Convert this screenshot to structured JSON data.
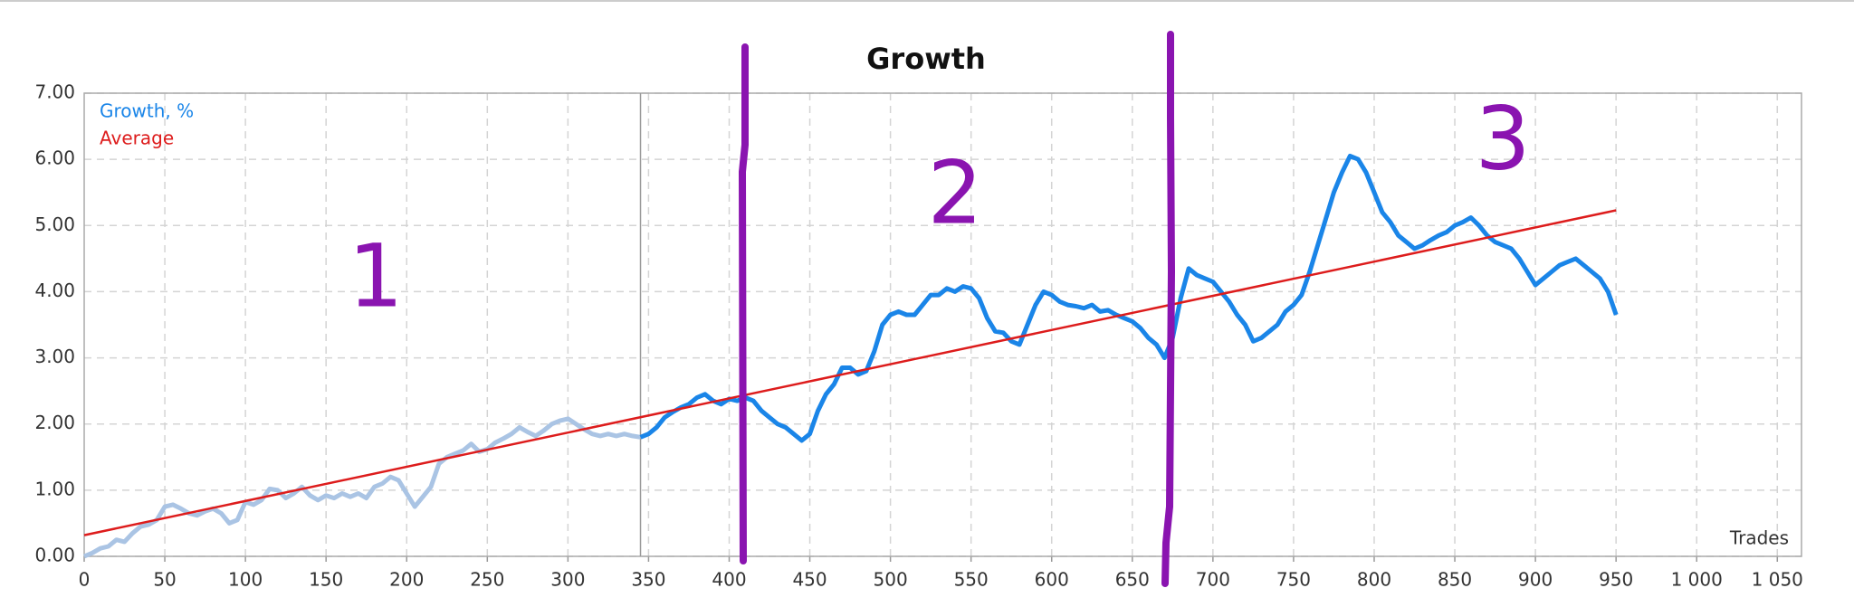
{
  "chart_data": {
    "type": "line",
    "title": "Growth",
    "x_label": "Trades",
    "xlim": [
      0,
      1065
    ],
    "xticks": [
      0,
      50,
      100,
      150,
      200,
      250,
      300,
      350,
      400,
      450,
      500,
      550,
      600,
      650,
      700,
      750,
      800,
      850,
      900,
      950,
      {
        "value": 1000,
        "label": "1 000"
      },
      {
        "value": 1050,
        "label": "1 050"
      }
    ],
    "ylim": [
      0,
      7
    ],
    "yticks": [
      {
        "value": 0,
        "label": "0.00"
      },
      {
        "value": 1,
        "label": "1.00"
      },
      {
        "value": 2,
        "label": "2.00"
      },
      {
        "value": 3,
        "label": "3.00"
      },
      {
        "value": 4,
        "label": "4.00"
      },
      {
        "value": 5,
        "label": "5.00"
      },
      {
        "value": 6,
        "label": "6.00"
      },
      {
        "value": 7,
        "label": "7.00"
      }
    ],
    "grid": true,
    "legend": "top-left",
    "series": [
      {
        "name": "Growth, %",
        "color": "#1a85e8",
        "x": [
          345,
          350,
          355,
          360,
          365,
          370,
          375,
          380,
          385,
          390,
          395,
          400,
          405,
          410,
          415,
          420,
          425,
          430,
          435,
          440,
          445,
          450,
          455,
          460,
          465,
          470,
          475,
          480,
          485,
          490,
          495,
          500,
          505,
          510,
          515,
          520,
          525,
          530,
          535,
          540,
          545,
          550,
          555,
          560,
          565,
          570,
          575,
          580,
          585,
          590,
          595,
          600,
          605,
          610,
          615,
          620,
          625,
          630,
          635,
          640,
          645,
          650,
          655,
          660,
          665,
          670,
          675,
          680,
          685,
          690,
          695,
          700,
          705,
          710,
          715,
          720,
          725,
          730,
          735,
          740,
          745,
          750,
          755,
          760,
          765,
          770,
          775,
          780,
          785,
          790,
          795,
          800,
          805,
          810,
          815,
          820,
          825,
          830,
          835,
          840,
          845,
          850,
          855,
          860,
          865,
          870,
          875,
          880,
          885,
          890,
          895,
          900,
          905,
          910,
          915,
          920,
          925,
          930,
          935,
          940,
          945,
          950
        ],
        "values": [
          1.8,
          1.85,
          1.95,
          2.1,
          2.18,
          2.25,
          2.3,
          2.4,
          2.45,
          2.35,
          2.3,
          2.38,
          2.35,
          2.4,
          2.35,
          2.2,
          2.1,
          2.0,
          1.95,
          1.85,
          1.75,
          1.85,
          2.2,
          2.45,
          2.6,
          2.85,
          2.85,
          2.75,
          2.8,
          3.1,
          3.5,
          3.65,
          3.7,
          3.65,
          3.65,
          3.8,
          3.95,
          3.95,
          4.05,
          4.0,
          4.08,
          4.05,
          3.9,
          3.6,
          3.4,
          3.38,
          3.25,
          3.2,
          3.5,
          3.8,
          4.0,
          3.95,
          3.85,
          3.8,
          3.78,
          3.75,
          3.8,
          3.7,
          3.72,
          3.65,
          3.6,
          3.55,
          3.45,
          3.3,
          3.2,
          3.0,
          3.3,
          3.9,
          4.35,
          4.25,
          4.2,
          4.15,
          4.0,
          3.85,
          3.65,
          3.5,
          3.25,
          3.3,
          3.4,
          3.5,
          3.7,
          3.8,
          3.95,
          4.3,
          4.7,
          5.1,
          5.5,
          5.8,
          6.05,
          6.0,
          5.8,
          5.5,
          5.2,
          5.05,
          4.85,
          4.75,
          4.65,
          4.7,
          4.78,
          4.85,
          4.9,
          5.0,
          5.05,
          5.12,
          5.0,
          4.85,
          4.75,
          4.7,
          4.65,
          4.5,
          4.3,
          4.1,
          4.2,
          4.3,
          4.4,
          4.45,
          4.5,
          4.4,
          4.3,
          4.2,
          4.0,
          3.65
        ]
      },
      {
        "name": "Average",
        "color": "#dd1c1c",
        "x": [
          0,
          950
        ],
        "values": [
          0.32,
          5.23
        ]
      },
      {
        "color": "#aac4e4",
        "x": [
          0,
          5,
          10,
          15,
          20,
          25,
          30,
          35,
          40,
          45,
          50,
          55,
          60,
          65,
          70,
          75,
          80,
          85,
          90,
          95,
          100,
          105,
          110,
          115,
          120,
          125,
          130,
          135,
          140,
          145,
          150,
          155,
          160,
          165,
          170,
          175,
          180,
          185,
          190,
          195,
          200,
          205,
          210,
          215,
          220,
          225,
          230,
          235,
          240,
          245,
          250,
          255,
          260,
          265,
          270,
          275,
          280,
          285,
          290,
          295,
          300,
          305,
          310,
          315,
          320,
          325,
          330,
          335,
          340,
          345
        ],
        "values": [
          0,
          0.05,
          0.12,
          0.15,
          0.25,
          0.22,
          0.35,
          0.45,
          0.48,
          0.55,
          0.75,
          0.78,
          0.72,
          0.65,
          0.62,
          0.68,
          0.72,
          0.65,
          0.5,
          0.55,
          0.82,
          0.78,
          0.85,
          1.02,
          1.0,
          0.88,
          0.95,
          1.05,
          0.92,
          0.85,
          0.92,
          0.88,
          0.95,
          0.9,
          0.95,
          0.88,
          1.05,
          1.1,
          1.2,
          1.15,
          0.95,
          0.75,
          0.9,
          1.05,
          1.4,
          1.5,
          1.55,
          1.6,
          1.7,
          1.58,
          1.62,
          1.72,
          1.78,
          1.85,
          1.95,
          1.88,
          1.82,
          1.9,
          2.0,
          2.05,
          2.08,
          2.0,
          1.92,
          1.85,
          1.82,
          1.85,
          1.82,
          1.85,
          1.82,
          1.8
        ]
      }
    ],
    "annotations": [
      "1",
      "2",
      "3"
    ]
  }
}
